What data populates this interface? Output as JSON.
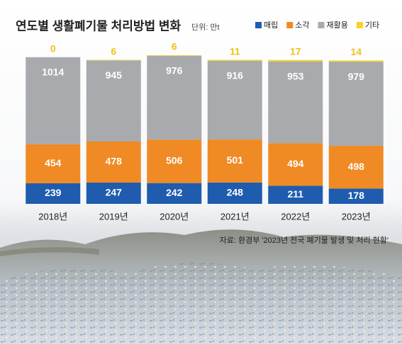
{
  "chart_data": {
    "type": "stacked-bar",
    "title": "연도별 생활폐기물 처리방법 변화",
    "unit": "단위: 만t",
    "source": "자료: 환경부 '2023년 전국 폐기물 발생 및 처리 현황'",
    "categories": [
      "2018년",
      "2019년",
      "2020년",
      "2021년",
      "2022년",
      "2023년"
    ],
    "series": [
      {
        "name": "매립",
        "color": "#1f5cae",
        "values": [
          239,
          247,
          242,
          248,
          211,
          178
        ]
      },
      {
        "name": "소각",
        "color": "#f08a24",
        "values": [
          454,
          478,
          506,
          501,
          494,
          498
        ]
      },
      {
        "name": "재활용",
        "color": "#a8aaad",
        "values": [
          1014,
          945,
          976,
          916,
          953,
          979
        ]
      },
      {
        "name": "기타",
        "color": "#f5d327",
        "values": [
          0,
          6,
          6,
          11,
          17,
          14
        ]
      }
    ]
  }
}
